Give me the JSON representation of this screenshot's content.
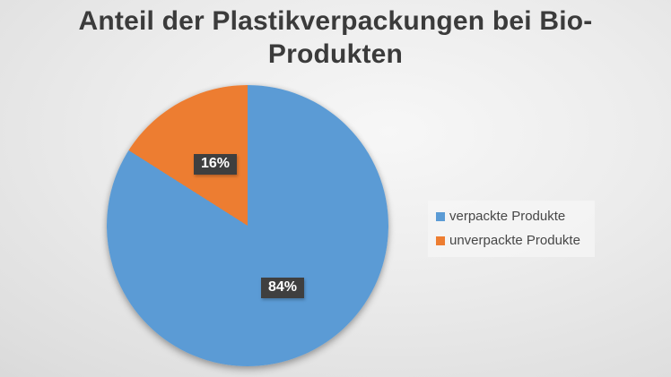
{
  "title": {
    "line1": "Anteil der Plastikverpackungen bei Bio-",
    "line2": "Produkten"
  },
  "chart_data": {
    "type": "pie",
    "title": "Anteil der Plastikverpackungen bei Bio-Produkten",
    "legend_position": "right",
    "start_angle_deg": 0,
    "direction": "clockwise",
    "data_label_style": {
      "background": "#3f3f3f",
      "text_color": "#ffffff"
    },
    "slices": [
      {
        "label": "verpackte Produkte",
        "value": 84,
        "display": "84%",
        "color": "#5b9bd5"
      },
      {
        "label": "unverpackte Produkte",
        "value": 16,
        "display": "16%",
        "color": "#ed7d31"
      }
    ]
  }
}
